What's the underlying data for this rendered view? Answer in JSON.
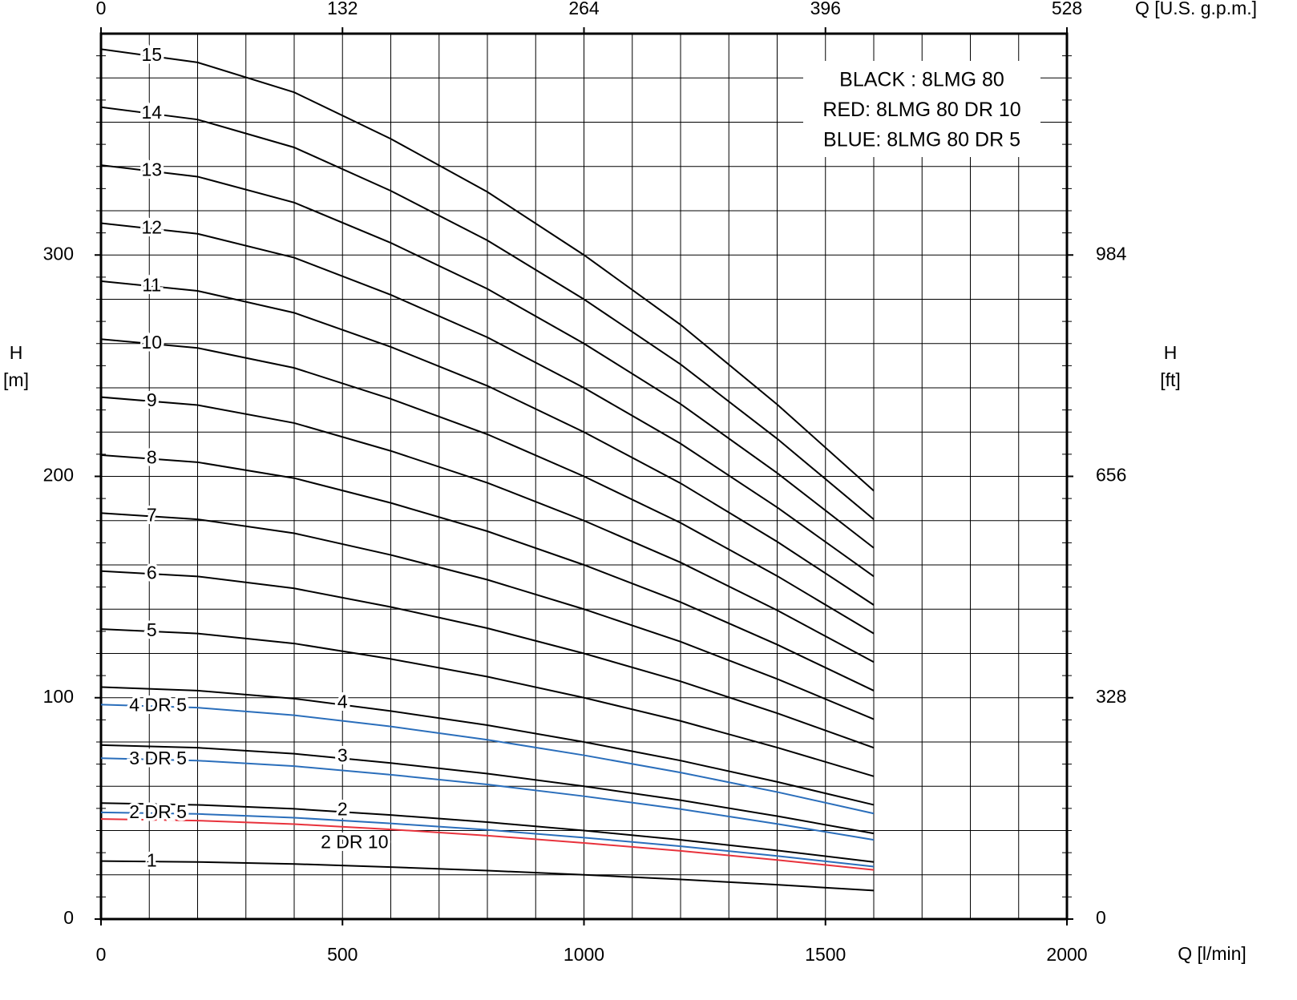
{
  "chart_data": {
    "type": "line",
    "x_label": "Q [l/min]",
    "x2_label": "Q [U.S. g.p.m.]",
    "y_label": "H",
    "y_unit": "[m]",
    "y2_label": "H",
    "y2_unit": "[ft]",
    "xlim": [
      0,
      2000
    ],
    "xticks": [
      0,
      500,
      1000,
      1500,
      2000
    ],
    "x2lim": [
      0,
      528
    ],
    "x2ticks": [
      0,
      132,
      264,
      396,
      528
    ],
    "ylim": [
      0,
      400
    ],
    "yticks": [
      0,
      100,
      200,
      300
    ],
    "y2lim": [
      0,
      1312
    ],
    "y2ticks": [
      0,
      328,
      656,
      984
    ],
    "grid": true,
    "x_grid_step": 100,
    "y_grid_step": 20,
    "y_minor_tick_step": 10,
    "annotations": [
      {
        "text": "BLACK : 8LMG 80",
        "color": "#000000"
      },
      {
        "text": "RED: 8LMG 80 DR 10",
        "color": "#e8323c"
      },
      {
        "text": "BLUE: 8LMG 80 DR 5",
        "color": "#2f55a8"
      }
    ],
    "x": [
      0,
      200,
      400,
      600,
      800,
      1000,
      1200,
      1400,
      1600
    ],
    "series": [
      {
        "name": "1",
        "color": "#000000",
        "values": [
          26.2,
          25.8,
          24.9,
          23.5,
          21.9,
          20.0,
          17.9,
          15.5,
          12.9
        ]
      },
      {
        "name": "2",
        "color": "#000000",
        "values": [
          52.4,
          51.6,
          49.8,
          47.0,
          43.8,
          40.0,
          35.8,
          31.0,
          25.8
        ]
      },
      {
        "name": "3",
        "color": "#000000",
        "values": [
          78.6,
          77.4,
          74.7,
          70.5,
          65.7,
          60.0,
          53.7,
          46.5,
          38.7
        ]
      },
      {
        "name": "4",
        "color": "#000000",
        "values": [
          104.8,
          103.2,
          99.6,
          94.0,
          87.6,
          80.0,
          71.6,
          62.0,
          51.6
        ]
      },
      {
        "name": "5",
        "color": "#000000",
        "values": [
          131,
          129,
          124.5,
          117.5,
          109.5,
          100,
          89.5,
          77.5,
          64.5
        ]
      },
      {
        "name": "6",
        "color": "#000000",
        "values": [
          157.2,
          154.8,
          149.4,
          141,
          131.4,
          120,
          107.4,
          93,
          77.4
        ]
      },
      {
        "name": "7",
        "color": "#000000",
        "values": [
          183.4,
          180.6,
          174.3,
          164.5,
          153.3,
          140,
          125.3,
          108.5,
          90.3
        ]
      },
      {
        "name": "8",
        "color": "#000000",
        "values": [
          209.6,
          206.4,
          199.2,
          188,
          175.2,
          160,
          143.2,
          124,
          103.2
        ]
      },
      {
        "name": "9",
        "color": "#000000",
        "values": [
          235.8,
          232.2,
          224.1,
          211.5,
          197.1,
          180,
          161.1,
          139.5,
          116.1
        ]
      },
      {
        "name": "10",
        "color": "#000000",
        "values": [
          262,
          258,
          249,
          235,
          219,
          200,
          179,
          155,
          129
        ]
      },
      {
        "name": "11",
        "color": "#000000",
        "values": [
          288.2,
          283.8,
          273.9,
          258.5,
          240.9,
          220,
          196.9,
          170.5,
          141.9
        ]
      },
      {
        "name": "12",
        "color": "#000000",
        "values": [
          314.4,
          309.6,
          298.8,
          282,
          262.8,
          240,
          214.8,
          186,
          154.8
        ]
      },
      {
        "name": "13",
        "color": "#000000",
        "values": [
          340.6,
          335.4,
          323.7,
          305.5,
          284.7,
          260,
          232.7,
          201.5,
          167.7
        ]
      },
      {
        "name": "14",
        "color": "#000000",
        "values": [
          366.8,
          361.2,
          348.6,
          329,
          306.6,
          280,
          250.6,
          217,
          180.6
        ]
      },
      {
        "name": "15",
        "color": "#000000",
        "values": [
          393,
          387,
          373.5,
          352.5,
          328.5,
          300,
          268.5,
          232.5,
          193.5
        ]
      },
      {
        "name": "4 DR 5",
        "color": "#2a6ebb",
        "values": [
          96.9,
          95.5,
          92.1,
          87.0,
          81.0,
          74.0,
          66.2,
          57.4,
          47.7
        ]
      },
      {
        "name": "3 DR 5",
        "color": "#2a6ebb",
        "values": [
          72.7,
          71.6,
          69.1,
          65.2,
          60.8,
          55.5,
          49.7,
          43.0,
          35.8
        ]
      },
      {
        "name": "2 DR 5",
        "color": "#2a6ebb",
        "values": [
          48.2,
          47.5,
          45.8,
          43.2,
          40.3,
          36.8,
          32.9,
          28.5,
          23.7
        ]
      },
      {
        "name": "2 DR 10",
        "color": "#e8323c",
        "values": [
          45.2,
          44.5,
          42.9,
          40.5,
          37.7,
          34.4,
          30.8,
          26.7,
          22.2
        ]
      }
    ]
  }
}
